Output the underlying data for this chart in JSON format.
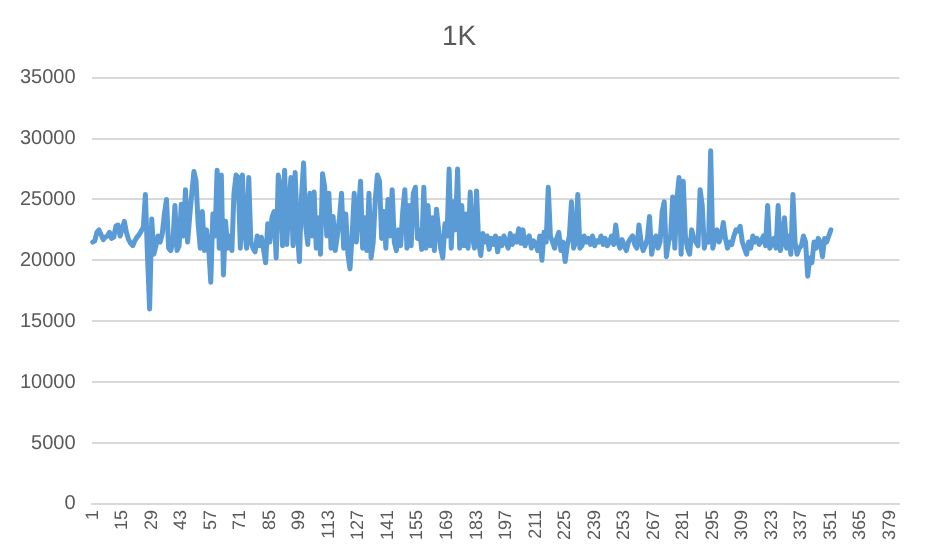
{
  "chart_data": {
    "type": "line",
    "title": "1K",
    "categories": [
      "1",
      null,
      null,
      null,
      null,
      null,
      null,
      null,
      null,
      null,
      null,
      null,
      null,
      null,
      "15",
      null,
      null,
      null,
      null,
      null,
      null,
      null,
      null,
      null,
      null,
      null,
      null,
      null,
      "29",
      null,
      null,
      null,
      null,
      null,
      null,
      null,
      null,
      null,
      null,
      null,
      null,
      null,
      "43",
      null,
      null,
      null,
      null,
      null,
      null,
      null,
      null,
      null,
      null,
      null,
      null,
      null,
      "57",
      null,
      null,
      null,
      null,
      null,
      null,
      null,
      null,
      null,
      null,
      null,
      null,
      null,
      "71",
      null,
      null,
      null,
      null,
      null,
      null,
      null,
      null,
      null,
      null,
      null,
      null,
      null,
      "85",
      null,
      null,
      null,
      null,
      null,
      null,
      null,
      null,
      null,
      null,
      null,
      null,
      null,
      "99",
      null,
      null,
      null,
      null,
      null,
      null,
      null,
      null,
      null,
      null,
      null,
      null,
      null,
      "113",
      null,
      null,
      null,
      null,
      null,
      null,
      null,
      null,
      null,
      null,
      null,
      null,
      null,
      "127",
      null,
      null,
      null,
      null,
      null,
      null,
      null,
      null,
      null,
      null,
      null,
      null,
      null,
      "141",
      null,
      null,
      null,
      null,
      null,
      null,
      null,
      null,
      null,
      null,
      null,
      null,
      null,
      "155",
      null,
      null,
      null,
      null,
      null,
      null,
      null,
      null,
      null,
      null,
      null,
      null,
      null,
      "169",
      null,
      null,
      null,
      null,
      null,
      null,
      null,
      null,
      null,
      null,
      null,
      null,
      null,
      "183",
      null,
      null,
      null,
      null,
      null,
      null,
      null,
      null,
      null,
      null,
      null,
      null,
      null,
      "197",
      null,
      null,
      null,
      null,
      null,
      null,
      null,
      null,
      null,
      null,
      null,
      null,
      null,
      "211",
      null,
      null,
      null,
      null,
      null,
      null,
      null,
      null,
      null,
      null,
      null,
      null,
      null,
      "225",
      null,
      null,
      null,
      null,
      null,
      null,
      null,
      null,
      null,
      null,
      null,
      null,
      null,
      "239",
      null,
      null,
      null,
      null,
      null,
      null,
      null,
      null,
      null,
      null,
      null,
      null,
      null,
      "253",
      null,
      null,
      null,
      null,
      null,
      null,
      null,
      null,
      null,
      null,
      null,
      null,
      null,
      "267",
      null,
      null,
      null,
      null,
      null,
      null,
      null,
      null,
      null,
      null,
      null,
      null,
      null,
      "281",
      null,
      null,
      null,
      null,
      null,
      null,
      null,
      null,
      null,
      null,
      null,
      null,
      null,
      "295",
      null,
      null,
      null,
      null,
      null,
      null,
      null,
      null,
      null,
      null,
      null,
      null,
      null,
      "309",
      null,
      null,
      null,
      null,
      null,
      null,
      null,
      null,
      null,
      null,
      null,
      null,
      null,
      "323",
      null,
      null,
      null,
      null,
      null,
      null,
      null,
      null,
      null,
      null,
      null,
      null,
      null,
      "337",
      null,
      null,
      null,
      null,
      null,
      null,
      null,
      null,
      null,
      null,
      null,
      null,
      null,
      "351",
      null,
      null,
      null,
      null,
      null,
      null,
      null,
      null,
      null,
      null,
      null,
      null,
      null,
      "365",
      null,
      null,
      null,
      null,
      null,
      null,
      null,
      null,
      null,
      null,
      null,
      null,
      null,
      "379",
      null,
      null,
      null,
      null
    ],
    "values": [
      21500,
      21600,
      22300,
      22500,
      22100,
      21700,
      21900,
      22000,
      22300,
      21800,
      21900,
      22800,
      22900,
      22000,
      22600,
      23200,
      22300,
      21700,
      21400,
      21200,
      21600,
      21900,
      22100,
      22400,
      22700,
      25400,
      20300,
      16000,
      23400,
      20500,
      21200,
      22000,
      21500,
      22200,
      23800,
      25000,
      21000,
      20800,
      21500,
      24500,
      20800,
      21200,
      24600,
      22000,
      25800,
      21500,
      23600,
      25500,
      27300,
      26500,
      23000,
      21000,
      24000,
      20800,
      22500,
      21000,
      18200,
      23800,
      22000,
      27400,
      21000,
      27000,
      18800,
      23200,
      21000,
      22000,
      20800,
      25500,
      27000,
      26800,
      21000,
      27000,
      22500,
      21000,
      26800,
      21500,
      21000,
      20700,
      22000,
      21200,
      21900,
      20900,
      19800,
      23000,
      21500,
      23500,
      24000,
      20200,
      27000,
      26000,
      21200,
      27400,
      21300,
      24500,
      26800,
      21200,
      27200,
      22500,
      19900,
      25200,
      28000,
      22800,
      21300,
      25500,
      22000,
      25600,
      21000,
      23500,
      20500,
      27100,
      26000,
      22000,
      25500,
      21000,
      23600,
      20800,
      22000,
      23500,
      25500,
      21000,
      23800,
      20500,
      19300,
      22000,
      25500,
      21500,
      24000,
      26500,
      21000,
      23500,
      20800,
      25500,
      20200,
      21500,
      25000,
      27000,
      26500,
      21800,
      24000,
      21000,
      25000,
      22000,
      25800,
      21500,
      20800,
      22500,
      21200,
      24000,
      25800,
      21000,
      24500,
      21200,
      25500,
      26000,
      21800,
      22500,
      20900,
      26000,
      21000,
      24500,
      21200,
      23500,
      20800,
      24200,
      22500,
      21000,
      20200,
      23000,
      22000,
      27500,
      21000,
      24800,
      22500,
      27500,
      21000,
      24500,
      21200,
      23800,
      21000,
      25600,
      22000,
      21000,
      25700,
      21500,
      20400,
      22200,
      21500,
      22000,
      20900,
      21800,
      21300,
      22000,
      20700,
      21800,
      21200,
      22000,
      21500,
      21000,
      22200,
      21300,
      22000,
      21500,
      22600,
      21400,
      22500,
      21200,
      21800,
      22000,
      21000,
      21600,
      21400,
      20800,
      22000,
      20000,
      22300,
      21500,
      26000,
      22000,
      21500,
      21000,
      21800,
      22300,
      20800,
      21500,
      19900,
      21200,
      22000,
      24800,
      21000,
      21500,
      25400,
      21000,
      21200,
      22000,
      21500,
      21800,
      21300,
      22000,
      21200,
      21600,
      21500,
      22000,
      21300,
      21800,
      21200,
      21500,
      22000,
      21300,
      22900,
      21500,
      21000,
      21700,
      21200,
      20800,
      21500,
      21800,
      22000,
      21300,
      21000,
      22900,
      21500,
      20800,
      21200,
      21800,
      23600,
      20500,
      21500,
      22000,
      21000,
      21500,
      24000,
      24800,
      20300,
      21500,
      22000,
      25200,
      21000,
      25000,
      26800,
      20500,
      26500,
      22000,
      21000,
      20500,
      22500,
      21800,
      21500,
      21200,
      25800,
      24500,
      21000,
      22000,
      21500,
      29000,
      21000,
      21800,
      22500,
      21500,
      22000,
      23100,
      21800,
      21000,
      21500,
      21300,
      22000,
      22500,
      22400,
      22800,
      21500,
      21000,
      20500,
      21500,
      21000,
      22000,
      21500,
      21800,
      21300,
      21600,
      22000,
      21200,
      24500,
      21000,
      21300,
      21800,
      21000,
      24500,
      20800,
      21500,
      23500,
      21000,
      22000,
      20500,
      25400,
      21500,
      20500,
      21000,
      21200,
      22000,
      21500,
      18700,
      20200,
      19800,
      21500,
      21000,
      21800,
      21500,
      20300,
      21800,
      21500,
      22000,
      22500,
      null,
      null,
      null,
      null,
      null,
      null,
      null,
      null,
      null,
      null,
      null,
      null,
      null,
      null,
      null,
      null,
      null,
      null,
      null,
      null,
      null,
      null,
      null,
      null,
      null,
      null,
      null,
      null,
      null,
      null,
      null,
      null
    ],
    "color": "#5b9bd5",
    "ylim": [
      0,
      35000
    ],
    "yticks": [
      0,
      5000,
      10000,
      15000,
      20000,
      25000,
      30000,
      35000
    ],
    "grid": "y",
    "marker": "none",
    "line_style": "solid"
  }
}
